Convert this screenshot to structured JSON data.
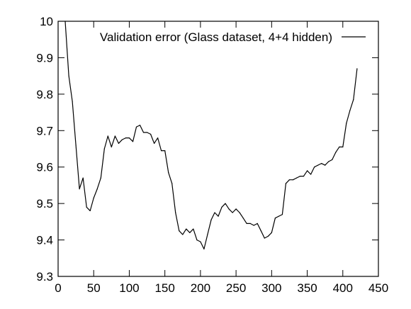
{
  "chart_data": {
    "type": "line",
    "title": "",
    "xlabel": "",
    "ylabel": "",
    "xlim": [
      0,
      450
    ],
    "ylim": [
      9.3,
      10
    ],
    "xticks": [
      "0",
      "50",
      "100",
      "150",
      "200",
      "250",
      "300",
      "350",
      "400",
      "450"
    ],
    "yticks": [
      "9.3",
      "9.4",
      "9.5",
      "9.6",
      "9.7",
      "9.8",
      "9.9",
      "10"
    ],
    "grid": false,
    "legend_position": "top-right",
    "series": [
      {
        "name": "Validation error (Glass dataset, 4+4 hidden)",
        "color": "#000000",
        "x": [
          10,
          15,
          20,
          25,
          30,
          35,
          40,
          45,
          50,
          55,
          60,
          65,
          70,
          75,
          80,
          85,
          90,
          95,
          100,
          105,
          110,
          115,
          120,
          125,
          130,
          135,
          140,
          145,
          150,
          155,
          160,
          165,
          170,
          175,
          180,
          185,
          190,
          195,
          200,
          205,
          210,
          215,
          220,
          225,
          230,
          235,
          240,
          245,
          250,
          255,
          260,
          265,
          270,
          275,
          280,
          285,
          290,
          295,
          300,
          305,
          310,
          315,
          320,
          325,
          330,
          335,
          340,
          345,
          350,
          355,
          360,
          365,
          370,
          375,
          380,
          385,
          390,
          395,
          400,
          405,
          410,
          415,
          420
        ],
        "y": [
          10.0,
          9.85,
          9.78,
          9.66,
          9.54,
          9.57,
          9.49,
          9.48,
          9.515,
          9.54,
          9.57,
          9.65,
          9.685,
          9.655,
          9.685,
          9.665,
          9.675,
          9.68,
          9.68,
          9.67,
          9.71,
          9.715,
          9.695,
          9.695,
          9.69,
          9.665,
          9.68,
          9.645,
          9.645,
          9.585,
          9.555,
          9.475,
          9.425,
          9.415,
          9.43,
          9.42,
          9.43,
          9.4,
          9.395,
          9.375,
          9.415,
          9.455,
          9.475,
          9.465,
          9.49,
          9.5,
          9.485,
          9.475,
          9.485,
          9.475,
          9.46,
          9.445,
          9.445,
          9.44,
          9.445,
          9.425,
          9.405,
          9.41,
          9.42,
          9.46,
          9.465,
          9.47,
          9.555,
          9.565,
          9.565,
          9.57,
          9.575,
          9.575,
          9.59,
          9.58,
          9.6,
          9.605,
          9.61,
          9.605,
          9.615,
          9.62,
          9.64,
          9.655,
          9.655,
          9.72,
          9.755,
          9.785,
          9.87
        ]
      }
    ]
  }
}
